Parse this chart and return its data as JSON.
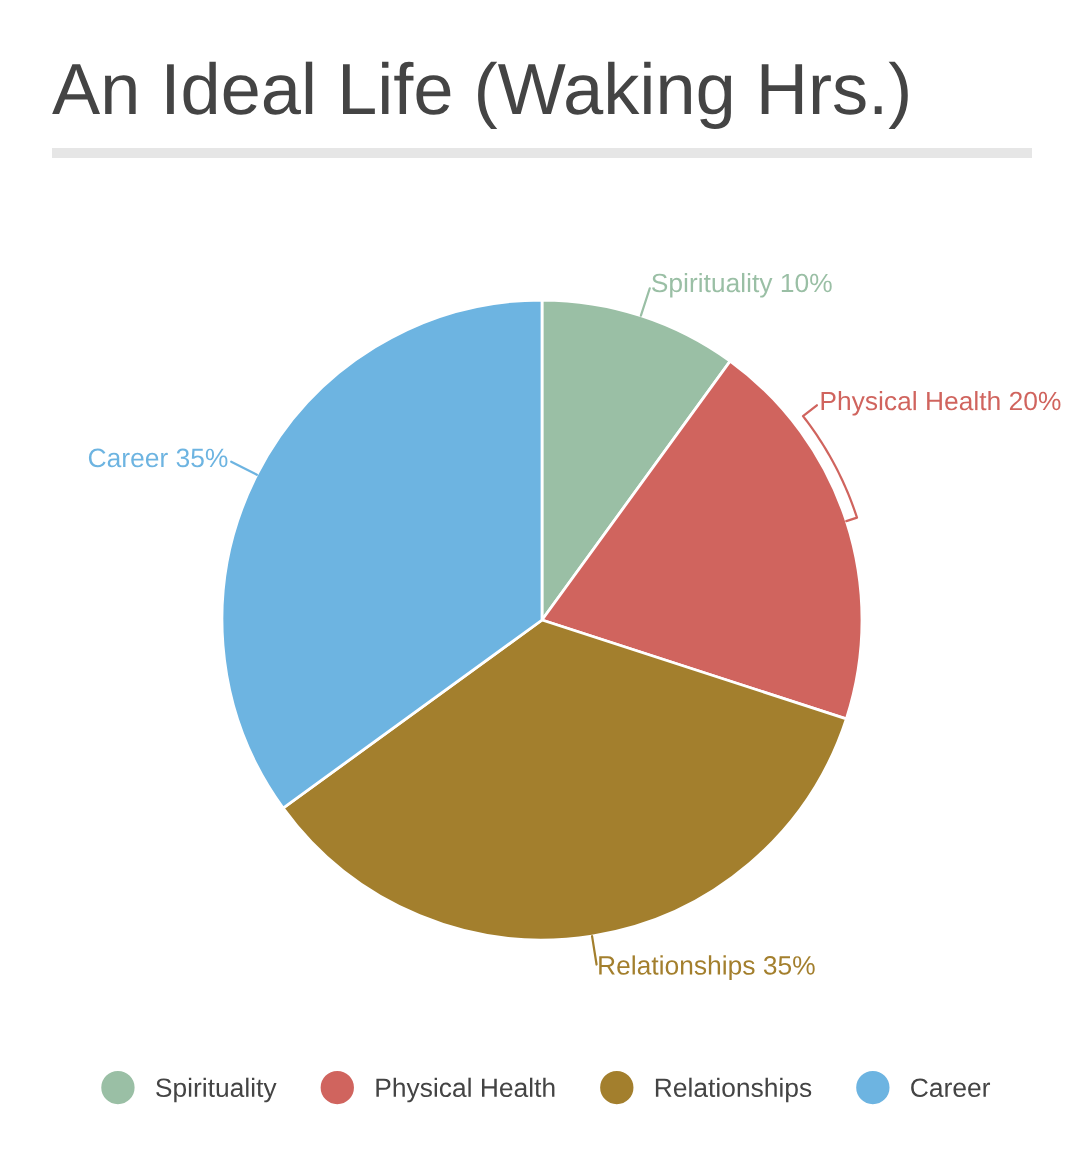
{
  "chart_data": {
    "type": "pie",
    "title": "An Ideal Life (Waking Hrs.)",
    "categories": [
      "Spirituality",
      "Physical Health",
      "Relationships",
      "Career"
    ],
    "values": [
      10,
      20,
      35,
      35
    ],
    "colors": [
      "#9abfa5",
      "#d0645e",
      "#a37f2d",
      "#6db4e1"
    ],
    "value_labels": [
      "Spirituality 10%",
      "Physical Health 20%",
      "Relationships 35%",
      "Career 35%"
    ],
    "legend": "bottom"
  }
}
